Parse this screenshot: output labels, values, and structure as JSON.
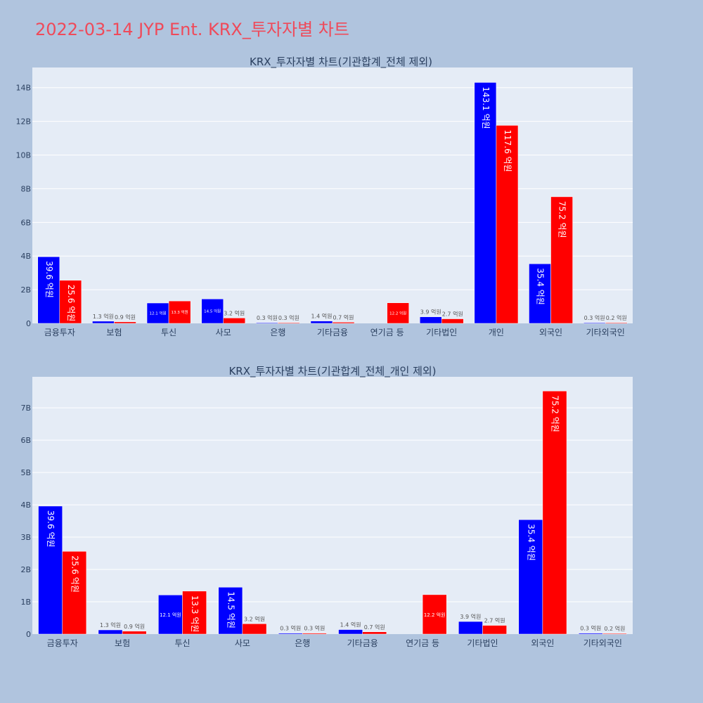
{
  "title": "2022-03-14 JYP Ent. KRX_투자자별 차트",
  "colors": {
    "buy": "#0000ff",
    "sell": "#ff0000",
    "plot_bg": "#e5ecf6",
    "page_bg": "#b0c4de"
  },
  "chart_data": [
    {
      "type": "bar",
      "title": "KRX_투자자별 차트(기관합계_전체 제외)",
      "categories": [
        "금융투자",
        "보험",
        "투신",
        "사모",
        "은행",
        "기타금융",
        "연기금 등",
        "기타법인",
        "개인",
        "외국인",
        "기타외국인"
      ],
      "series": [
        {
          "values": [
            3.96,
            0.13,
            1.21,
            1.45,
            0.03,
            0.14,
            0,
            0.39,
            14.31,
            3.54,
            0.03
          ],
          "labels": [
            "39.6 억원",
            "1.3 억원",
            "12.1 억원",
            "14.5 억원",
            "0.3 억원",
            "1.4 억원",
            "",
            "3.9 억원",
            "143.1 억원",
            "35.4 억원",
            "0.3 억원"
          ]
        },
        {
          "values": [
            2.56,
            0.09,
            1.33,
            0.32,
            0.03,
            0.07,
            1.22,
            0.27,
            11.76,
            7.52,
            0.02
          ],
          "labels": [
            "25.6 억원",
            "0.9 억원",
            "13.3 억원",
            "3.2 억원",
            "0.3 억원",
            "0.7 억원",
            "12.2 억원",
            "2.7 억원",
            "117.6 억원",
            "75.2 억원",
            "0.2 억원"
          ]
        }
      ],
      "ylim": [
        0,
        15.2
      ],
      "yticks": [
        0,
        2,
        4,
        6,
        8,
        10,
        12,
        14
      ],
      "ytick_labels": [
        "0",
        "2B",
        "4B",
        "6B",
        "8B",
        "10B",
        "12B",
        "14B"
      ],
      "grid": true
    },
    {
      "type": "bar",
      "title": "KRX_투자자별 차트(기관합계_전체_개인 제외)",
      "categories": [
        "금융투자",
        "보험",
        "투신",
        "사모",
        "은행",
        "기타금융",
        "연기금 등",
        "기타법인",
        "외국인",
        "기타외국인"
      ],
      "series": [
        {
          "values": [
            3.96,
            0.13,
            1.21,
            1.45,
            0.03,
            0.14,
            0,
            0.39,
            3.54,
            0.03
          ],
          "labels": [
            "39.6 억원",
            "1.3 억원",
            "12.1 억원",
            "14.5 억원",
            "0.3 억원",
            "1.4 억원",
            "",
            "3.9 억원",
            "35.4 억원",
            "0.3 억원"
          ]
        },
        {
          "values": [
            2.56,
            0.09,
            1.33,
            0.32,
            0.03,
            0.07,
            1.22,
            0.27,
            7.52,
            0.02
          ],
          "labels": [
            "25.6 억원",
            "0.9 억원",
            "13.3 억원",
            "3.2 억원",
            "0.3 억원",
            "0.7 억원",
            "12.2 억원",
            "2.7 억원",
            "75.2 억원",
            "0.2 억원"
          ]
        }
      ],
      "ylim": [
        0,
        7.96
      ],
      "yticks": [
        0,
        1,
        2,
        3,
        4,
        5,
        6,
        7
      ],
      "ytick_labels": [
        "0",
        "1B",
        "2B",
        "3B",
        "4B",
        "5B",
        "6B",
        "7B"
      ],
      "grid": true
    }
  ]
}
